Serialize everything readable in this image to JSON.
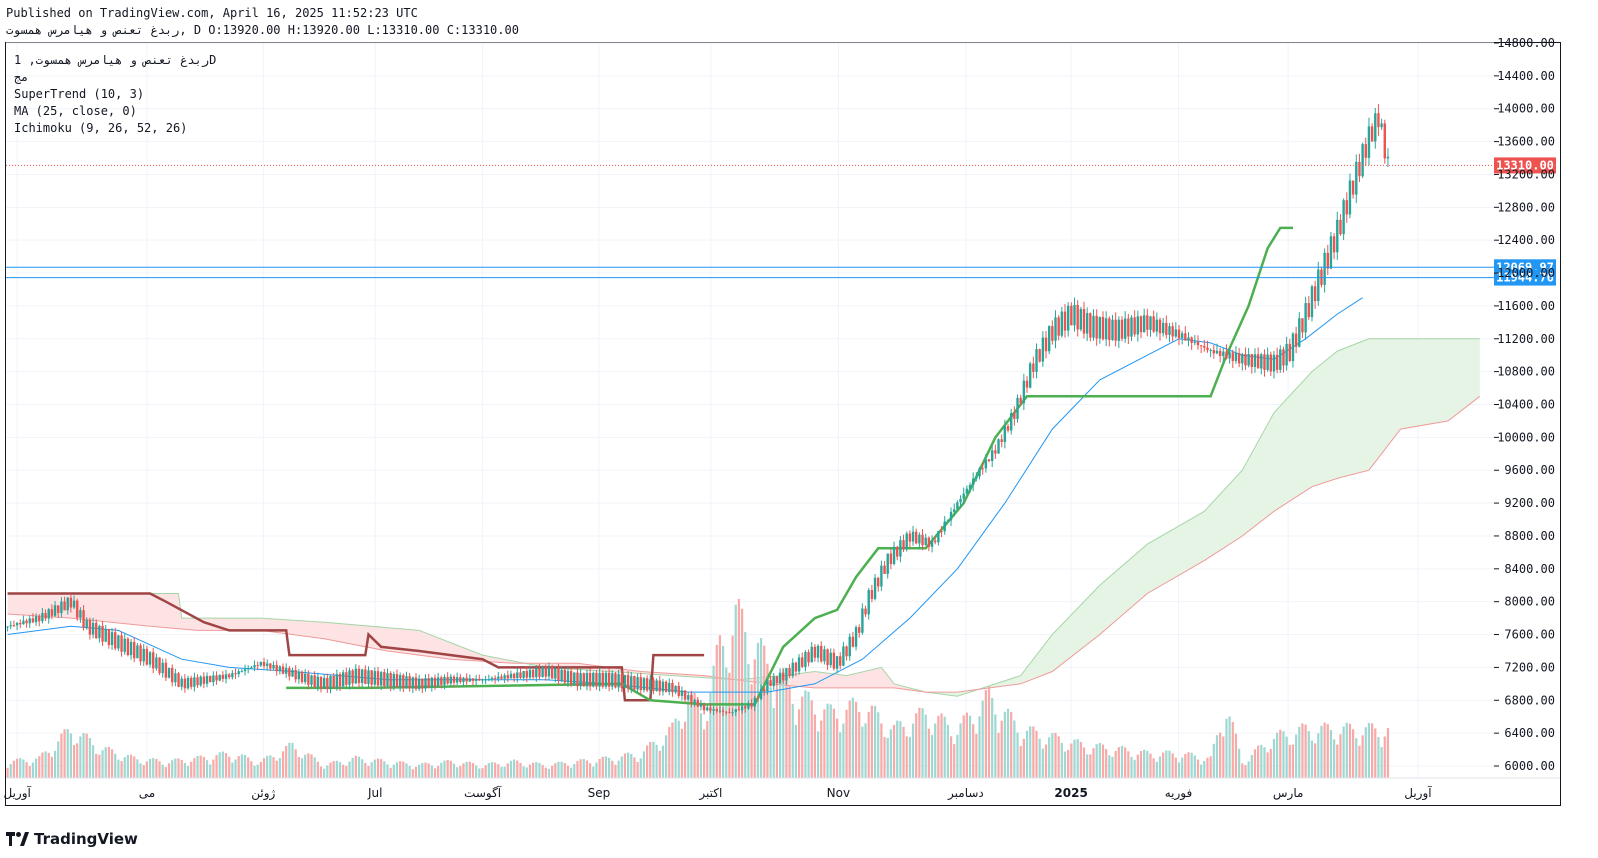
{
  "header": {
    "published": "Published on TradingView.com, April 16, 2025 11:52:23 UTC",
    "ohlc": "ربدغ تعنص و هیامرس همسوت, D O:13920.00 H:13920.00 L:13310.00 C:13310.00"
  },
  "legend": {
    "symbol_line": "ربدغ تعنص و هیامرس همسوت, 1D",
    "sub_line": "مج",
    "supertrend": "SuperTrend (10, 3)",
    "ma": "MA (25, close, 0)",
    "ichimoku": "Ichimoku (9, 26, 52, 26)"
  },
  "brand": {
    "name": "TradingView",
    "icon": "tradingview-logo-icon"
  },
  "colors": {
    "up": "#26a69a",
    "down": "#ef5350",
    "supertrend_up": "#4caf50",
    "supertrend_down": "#a04545",
    "ma": "#2196f3",
    "cloud_green": "#e6f4e6",
    "cloud_red": "#fde3e3",
    "hline": "#2196f3",
    "price_label": "#ef5350"
  },
  "chart_data": {
    "type": "candlestick",
    "y_ticks": [
      "14800.00",
      "14400.00",
      "14000.00",
      "13600.00",
      "13200.00",
      "12800.00",
      "12400.00",
      "12000.00",
      "11600.00",
      "11200.00",
      "10800.00",
      "10400.00",
      "10000.00",
      "9600.00",
      "9200.00",
      "8800.00",
      "8400.00",
      "8000.00",
      "7600.00",
      "7200.00",
      "6800.00",
      "6400.00",
      "6000.00"
    ],
    "x_ticks": [
      "آوریل",
      "می",
      "ژوئن",
      "Jul",
      "آگوست",
      "Sep",
      "اکتبر",
      "Nov",
      "دسامبر",
      "2025",
      "فوریه",
      "مارس",
      "آوریل"
    ],
    "last_price": {
      "value": 13310.0,
      "label": "13310.00"
    },
    "horizontal_lines": [
      {
        "value": 12069.97,
        "label": "12069.97"
      },
      {
        "value": 11944.76,
        "label": "11944.76"
      }
    ],
    "indicators": [
      "SuperTrend (10, 3)",
      "MA (25, close, 0)",
      "Ichimoku (9, 26, 52, 26)"
    ],
    "price_path": [
      [
        0,
        7700
      ],
      [
        10,
        7800
      ],
      [
        20,
        8000
      ],
      [
        25,
        7700
      ],
      [
        35,
        7500
      ],
      [
        45,
        7300
      ],
      [
        55,
        7000
      ],
      [
        70,
        7100
      ],
      [
        80,
        7250
      ],
      [
        88,
        7150
      ],
      [
        95,
        7050
      ],
      [
        100,
        7000
      ],
      [
        110,
        7100
      ],
      [
        120,
        7050
      ],
      [
        130,
        7000
      ],
      [
        140,
        7050
      ],
      [
        150,
        7050
      ],
      [
        160,
        7100
      ],
      [
        170,
        7150
      ],
      [
        180,
        7050
      ],
      [
        190,
        7050
      ],
      [
        200,
        7000
      ],
      [
        210,
        6950
      ],
      [
        220,
        6700
      ],
      [
        228,
        6650
      ],
      [
        235,
        6750
      ],
      [
        240,
        7000
      ],
      [
        245,
        7100
      ],
      [
        255,
        7400
      ],
      [
        262,
        7250
      ],
      [
        268,
        7600
      ],
      [
        272,
        8050
      ],
      [
        278,
        8500
      ],
      [
        285,
        8800
      ],
      [
        292,
        8700
      ],
      [
        300,
        9200
      ],
      [
        307,
        9600
      ],
      [
        312,
        9850
      ],
      [
        318,
        10300
      ],
      [
        324,
        10900
      ],
      [
        330,
        11300
      ],
      [
        336,
        11500
      ],
      [
        342,
        11350
      ],
      [
        350,
        11300
      ],
      [
        360,
        11400
      ],
      [
        370,
        11250
      ],
      [
        380,
        11050
      ],
      [
        390,
        10950
      ],
      [
        400,
        10900
      ],
      [
        405,
        11050
      ],
      [
        410,
        11500
      ],
      [
        415,
        12000
      ],
      [
        420,
        12500
      ],
      [
        425,
        13100
      ],
      [
        430,
        13650
      ],
      [
        433,
        13900
      ],
      [
        436,
        13310
      ]
    ],
    "ma_path": [
      [
        0,
        7600
      ],
      [
        20,
        7700
      ],
      [
        35,
        7650
      ],
      [
        55,
        7300
      ],
      [
        70,
        7200
      ],
      [
        90,
        7150
      ],
      [
        120,
        7050
      ],
      [
        150,
        7050
      ],
      [
        170,
        7050
      ],
      [
        190,
        7000
      ],
      [
        215,
        6900
      ],
      [
        240,
        6900
      ],
      [
        255,
        7000
      ],
      [
        270,
        7300
      ],
      [
        285,
        7800
      ],
      [
        300,
        8400
      ],
      [
        315,
        9200
      ],
      [
        330,
        10100
      ],
      [
        345,
        10700
      ],
      [
        360,
        11000
      ],
      [
        370,
        11200
      ],
      [
        380,
        11150
      ],
      [
        390,
        11000
      ],
      [
        400,
        10950
      ],
      [
        410,
        11200
      ],
      [
        420,
        11500
      ],
      [
        428,
        11700
      ]
    ],
    "supertrend_down": [
      [
        0,
        8100
      ],
      [
        45,
        8100
      ],
      [
        50,
        8000
      ],
      [
        62,
        7750
      ],
      [
        70,
        7650
      ],
      [
        88,
        7650
      ],
      [
        89,
        7350
      ],
      [
        113,
        7350
      ],
      [
        114,
        7600
      ],
      [
        118,
        7450
      ],
      [
        130,
        7400
      ],
      [
        150,
        7300
      ],
      [
        155,
        7200
      ],
      [
        194,
        7200
      ],
      [
        195,
        6800
      ],
      [
        203,
        6800
      ],
      [
        204,
        7350
      ],
      [
        220,
        7350
      ]
    ],
    "supertrend_up": [
      [
        88,
        6950
      ],
      [
        113,
        6950
      ],
      [
        194,
        7000
      ],
      [
        203,
        6800
      ],
      [
        220,
        6750
      ],
      [
        236,
        6750
      ],
      [
        245,
        7450
      ],
      [
        255,
        7800
      ],
      [
        262,
        7900
      ],
      [
        268,
        8300
      ],
      [
        275,
        8650
      ],
      [
        290,
        8650
      ],
      [
        302,
        9200
      ],
      [
        312,
        10000
      ],
      [
        322,
        10500
      ],
      [
        327,
        10500
      ],
      [
        380,
        10500
      ],
      [
        385,
        11000
      ],
      [
        392,
        11600
      ],
      [
        398,
        12300
      ],
      [
        402,
        12550
      ],
      [
        406,
        12550
      ]
    ],
    "cloud_upper": [
      [
        0,
        8100
      ],
      [
        45,
        8100
      ],
      [
        54,
        8100
      ],
      [
        55,
        7800
      ],
      [
        80,
        7800
      ],
      [
        100,
        7750
      ],
      [
        130,
        7650
      ],
      [
        150,
        7350
      ],
      [
        170,
        7200
      ],
      [
        190,
        7150
      ],
      [
        210,
        7100
      ],
      [
        230,
        7050
      ],
      [
        245,
        7100
      ],
      [
        255,
        7150
      ],
      [
        265,
        7100
      ],
      [
        276,
        7200
      ],
      [
        280,
        7000
      ],
      [
        290,
        6900
      ],
      [
        300,
        6850
      ],
      [
        320,
        7100
      ],
      [
        330,
        7600
      ],
      [
        345,
        8200
      ],
      [
        360,
        8700
      ],
      [
        378,
        9100
      ],
      [
        390,
        9600
      ],
      [
        400,
        10300
      ],
      [
        412,
        10800
      ],
      [
        420,
        11050
      ],
      [
        430,
        11200
      ],
      [
        440,
        11200
      ],
      [
        455,
        11200
      ],
      [
        465,
        11200
      ]
    ],
    "cloud_lower": [
      [
        0,
        7850
      ],
      [
        20,
        7800
      ],
      [
        45,
        7700
      ],
      [
        60,
        7650
      ],
      [
        80,
        7650
      ],
      [
        100,
        7550
      ],
      [
        120,
        7400
      ],
      [
        140,
        7300
      ],
      [
        160,
        7250
      ],
      [
        180,
        7250
      ],
      [
        200,
        7150
      ],
      [
        220,
        7100
      ],
      [
        240,
        7000
      ],
      [
        255,
        6950
      ],
      [
        265,
        6950
      ],
      [
        280,
        6950
      ],
      [
        290,
        6900
      ],
      [
        300,
        6900
      ],
      [
        320,
        7000
      ],
      [
        330,
        7150
      ],
      [
        345,
        7600
      ],
      [
        360,
        8100
      ],
      [
        378,
        8500
      ],
      [
        390,
        8800
      ],
      [
        400,
        9100
      ],
      [
        412,
        9400
      ],
      [
        420,
        9500
      ],
      [
        430,
        9600
      ],
      [
        440,
        10100
      ],
      [
        455,
        10200
      ],
      [
        465,
        10500
      ]
    ],
    "volume_path": [
      [
        0,
        0.1
      ],
      [
        10,
        0.12
      ],
      [
        20,
        0.3
      ],
      [
        30,
        0.18
      ],
      [
        40,
        0.12
      ],
      [
        50,
        0.1
      ],
      [
        60,
        0.12
      ],
      [
        70,
        0.15
      ],
      [
        80,
        0.1
      ],
      [
        90,
        0.2
      ],
      [
        100,
        0.08
      ],
      [
        110,
        0.12
      ],
      [
        120,
        0.1
      ],
      [
        130,
        0.08
      ],
      [
        140,
        0.1
      ],
      [
        150,
        0.08
      ],
      [
        160,
        0.1
      ],
      [
        170,
        0.08
      ],
      [
        180,
        0.1
      ],
      [
        190,
        0.12
      ],
      [
        200,
        0.15
      ],
      [
        210,
        0.3
      ],
      [
        215,
        0.5
      ],
      [
        220,
        0.4
      ],
      [
        225,
        0.8
      ],
      [
        230,
        1.0
      ],
      [
        240,
        0.7
      ],
      [
        250,
        0.5
      ],
      [
        260,
        0.4
      ],
      [
        270,
        0.45
      ],
      [
        280,
        0.3
      ],
      [
        290,
        0.4
      ],
      [
        300,
        0.3
      ],
      [
        310,
        0.5
      ],
      [
        320,
        0.3
      ],
      [
        330,
        0.25
      ],
      [
        340,
        0.2
      ],
      [
        350,
        0.18
      ],
      [
        360,
        0.15
      ],
      [
        370,
        0.15
      ],
      [
        380,
        0.12
      ],
      [
        385,
        0.45
      ],
      [
        390,
        0.1
      ],
      [
        400,
        0.25
      ],
      [
        410,
        0.3
      ],
      [
        420,
        0.3
      ],
      [
        430,
        0.3
      ],
      [
        436,
        0.3
      ]
    ]
  }
}
